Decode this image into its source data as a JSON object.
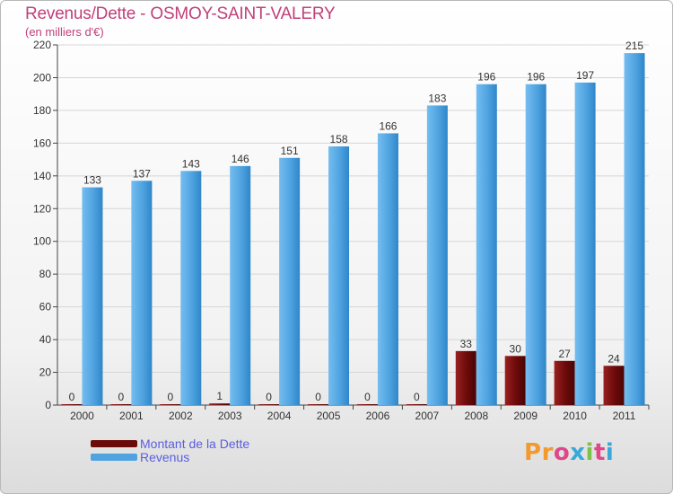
{
  "title": "Revenus/Dette - OSMOY-SAINT-VALERY",
  "subtitle": "(en milliers d'€)",
  "colors": {
    "dette": "#6b0a0a",
    "revenus": "#4fa3e0",
    "title": "#c0407a",
    "legend_text": "#5a5ee0"
  },
  "legend": [
    {
      "label": "Montant de la Dette",
      "color": "#6b0a0a"
    },
    {
      "label": "Revenus",
      "color": "#4fa3e0"
    }
  ],
  "logo": {
    "text": "Proxiti"
  },
  "chart_data": {
    "type": "bar",
    "title": "Revenus/Dette - OSMOY-SAINT-VALERY",
    "subtitle": "(en milliers d'€)",
    "categories": [
      "2000",
      "2001",
      "2002",
      "2003",
      "2004",
      "2005",
      "2006",
      "2007",
      "2008",
      "2009",
      "2010",
      "2011"
    ],
    "series": [
      {
        "name": "Montant de la Dette",
        "color": "#6b0a0a",
        "values": [
          0,
          0,
          0,
          1,
          0,
          0,
          0,
          0,
          33,
          30,
          27,
          24
        ]
      },
      {
        "name": "Revenus",
        "color": "#4fa3e0",
        "values": [
          133,
          137,
          143,
          146,
          151,
          158,
          166,
          183,
          196,
          196,
          197,
          215
        ]
      }
    ],
    "ylim": [
      0,
      220
    ],
    "yticks": [
      0,
      20,
      40,
      60,
      80,
      100,
      120,
      140,
      160,
      180,
      200,
      220
    ],
    "grid": true,
    "legend_position": "bottom-left"
  }
}
